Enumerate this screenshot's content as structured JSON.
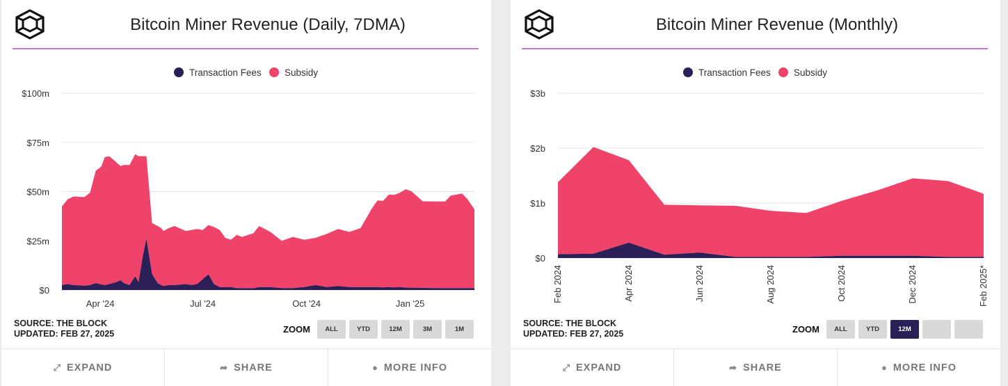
{
  "colors": {
    "fees": "#2b1f57",
    "subsidy": "#f0436a",
    "accent_line": "#c774db",
    "zoom_active": "#2b1f57"
  },
  "icons": {
    "logo": "the-block-cube-logo",
    "expand": "expand-arrows-icon",
    "share": "share-arrow-icon",
    "info": "info-circle-icon"
  },
  "left": {
    "title": "Bitcoin Miner Revenue (Daily, 7DMA)",
    "source": "SOURCE: THE BLOCK",
    "updated": "UPDATED: FEB 27, 2025",
    "zoom_label": "ZOOM",
    "zoom_buttons": [
      "ALL",
      "YTD",
      "12M",
      "3M",
      "1M"
    ],
    "zoom_active": "",
    "actions": {
      "expand": "EXPAND",
      "share": "SHARE",
      "more_info": "MORE INFO"
    }
  },
  "right": {
    "title": "Bitcoin Miner Revenue (Monthly)",
    "source": "SOURCE: THE BLOCK",
    "updated": "UPDATED: FEB 27, 2025",
    "zoom_label": "ZOOM",
    "zoom_buttons": [
      "ALL",
      "YTD",
      "12M",
      "",
      ""
    ],
    "zoom_active": "12M",
    "actions": {
      "expand": "EXPAND",
      "share": "SHARE",
      "more_info": "MORE INFO"
    }
  },
  "chart_data": [
    {
      "type": "area",
      "stacked": true,
      "title": "Bitcoin Miner Revenue (Daily, 7DMA)",
      "legend": [
        "Transaction Fees",
        "Subsidy"
      ],
      "legend_position": "top-center",
      "y_unit": "million USD",
      "ylim": [
        0,
        100
      ],
      "y_ticks": [
        0,
        25,
        50,
        75,
        100
      ],
      "y_tick_labels": [
        "$0",
        "$25m",
        "$50m",
        "$75m",
        "$100m"
      ],
      "x_unit": "days since Feb 27, 2024",
      "xlim": [
        0,
        366
      ],
      "x_ticks": [
        34,
        125,
        217,
        309
      ],
      "x_tick_labels": [
        "Apr '24",
        "Jul '24",
        "Oct '24",
        "Jan '25"
      ],
      "x": [
        0,
        5,
        10,
        20,
        25,
        30,
        35,
        38,
        42,
        48,
        52,
        55,
        60,
        65,
        68,
        72,
        75,
        80,
        85,
        88,
        90,
        95,
        100,
        110,
        115,
        120,
        125,
        130,
        135,
        140,
        145,
        150,
        155,
        160,
        170,
        175,
        185,
        195,
        205,
        215,
        225,
        235,
        245,
        255,
        265,
        275,
        280,
        285,
        290,
        295,
        300,
        305,
        310,
        320,
        330,
        340,
        345,
        355,
        360,
        366
      ],
      "series": [
        {
          "name": "Transaction Fees",
          "values": [
            2.5,
            3,
            2.5,
            2.2,
            2.5,
            3.5,
            2.8,
            2.5,
            3,
            4,
            5,
            3.5,
            2.5,
            7,
            4,
            18,
            26,
            8,
            3.5,
            2.5,
            2,
            2.5,
            2.5,
            3,
            2.5,
            3,
            5.5,
            8,
            3,
            1.5,
            1.5,
            1.5,
            1,
            1,
            0.9,
            1.5,
            1.5,
            1,
            1,
            1.5,
            2.5,
            1.5,
            2,
            1.5,
            1.5,
            1.5,
            1.5,
            1.3,
            1.5,
            1.3,
            1.5,
            1.2,
            1.2,
            1.1,
            1,
            1,
            1,
            1,
            1,
            1
          ]
        },
        {
          "name": "Subsidy",
          "values": [
            40,
            43,
            45,
            45,
            47,
            57,
            60,
            65,
            65,
            61,
            58,
            60,
            61,
            62,
            64,
            50,
            42,
            26,
            29,
            29,
            28,
            29,
            30,
            27,
            28,
            28,
            25,
            25,
            29,
            29,
            25,
            24,
            27,
            26,
            28,
            31,
            28,
            24,
            26,
            24,
            24,
            27,
            29,
            28,
            30,
            40,
            44,
            44,
            47,
            47,
            48,
            50,
            49,
            44,
            44,
            44,
            47,
            48,
            45,
            40
          ]
        }
      ]
    },
    {
      "type": "area",
      "stacked": true,
      "title": "Bitcoin Miner Revenue (Monthly)",
      "legend": [
        "Transaction Fees",
        "Subsidy"
      ],
      "legend_position": "top-center",
      "y_unit": "billion USD",
      "ylim": [
        0,
        3
      ],
      "y_ticks": [
        0,
        1,
        2,
        3
      ],
      "y_tick_labels": [
        "$0",
        "$1b",
        "$2b",
        "$3b"
      ],
      "categories": [
        "Feb 2024",
        "Mar 2024",
        "Apr 2024",
        "May 2024",
        "Jun 2024",
        "Jul 2024",
        "Aug 2024",
        "Sep 2024",
        "Oct 2024",
        "Nov 2024",
        "Dec 2024",
        "Jan 2025",
        "Feb 2025*"
      ],
      "x_tick_labels": [
        "Feb 2024",
        "Apr 2024",
        "Jun 2024",
        "Aug 2024",
        "Oct 2024",
        "Dec 2024",
        "Feb 2025*"
      ],
      "series": [
        {
          "name": "Transaction Fees",
          "values": [
            0.07,
            0.08,
            0.28,
            0.06,
            0.1,
            0.02,
            0.02,
            0.02,
            0.04,
            0.04,
            0.04,
            0.02,
            0.02
          ]
        },
        {
          "name": "Subsidy",
          "values": [
            1.31,
            1.94,
            1.5,
            0.91,
            0.86,
            0.93,
            0.84,
            0.8,
            1.0,
            1.19,
            1.41,
            1.38,
            1.15
          ]
        }
      ]
    }
  ]
}
